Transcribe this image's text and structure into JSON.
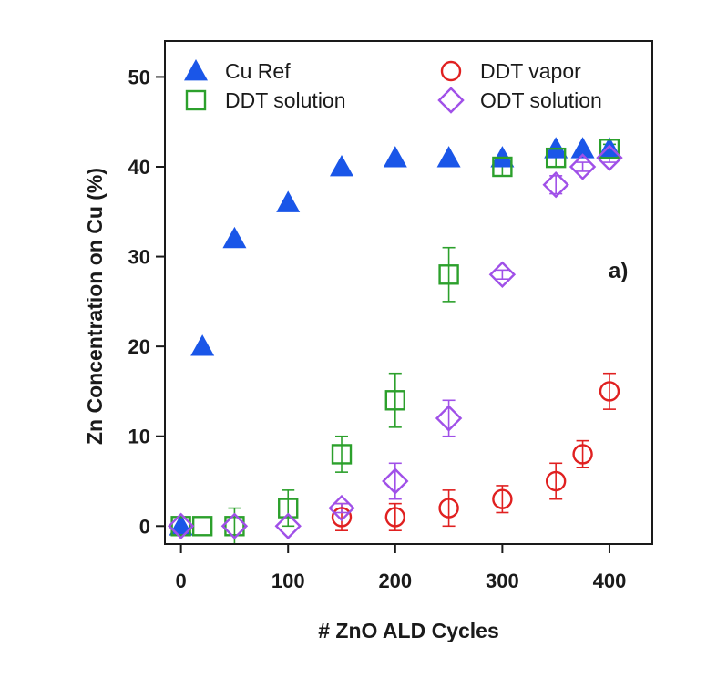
{
  "chart_data": {
    "type": "scatter",
    "title": "",
    "xlabel": "# ZnO ALD Cycles",
    "ylabel": "Zn Concentration on Cu (%)",
    "panel_label": "a)",
    "xlim": [
      -15,
      440
    ],
    "ylim": [
      -2,
      54
    ],
    "x_ticks": [
      0,
      100,
      200,
      300,
      400
    ],
    "y_ticks": [
      0,
      10,
      20,
      30,
      40,
      50
    ],
    "x_tick_labels": [
      "0",
      "100",
      "200",
      "300",
      "400"
    ],
    "y_tick_labels": [
      "0",
      "10",
      "20",
      "30",
      "40",
      "50"
    ],
    "grid": false,
    "legend_position": "top",
    "series": [
      {
        "name": "Cu Ref",
        "marker": "triangle-filled",
        "color": "#1a56e8",
        "points": [
          {
            "x": 0,
            "y": 0
          },
          {
            "x": 20,
            "y": 20
          },
          {
            "x": 50,
            "y": 32
          },
          {
            "x": 100,
            "y": 36
          },
          {
            "x": 150,
            "y": 40
          },
          {
            "x": 200,
            "y": 41
          },
          {
            "x": 250,
            "y": 41
          },
          {
            "x": 300,
            "y": 41
          },
          {
            "x": 350,
            "y": 42
          },
          {
            "x": 375,
            "y": 42
          },
          {
            "x": 400,
            "y": 42
          }
        ]
      },
      {
        "name": "DDT solution",
        "marker": "square-open",
        "color": "#2ca02c",
        "points": [
          {
            "x": 0,
            "y": 0,
            "err": 0
          },
          {
            "x": 20,
            "y": 0,
            "err": 0
          },
          {
            "x": 50,
            "y": 0,
            "err": 2
          },
          {
            "x": 100,
            "y": 2,
            "err": 2
          },
          {
            "x": 150,
            "y": 8,
            "err": 2
          },
          {
            "x": 200,
            "y": 14,
            "err": 3
          },
          {
            "x": 250,
            "y": 28,
            "err": 3
          },
          {
            "x": 300,
            "y": 40,
            "err": 1
          },
          {
            "x": 350,
            "y": 41,
            "err": 1
          },
          {
            "x": 400,
            "y": 42,
            "err": 0.5
          }
        ]
      },
      {
        "name": "DDT vapor",
        "marker": "circle-open",
        "color": "#e02020",
        "points": [
          {
            "x": 150,
            "y": 1,
            "err": 1.5
          },
          {
            "x": 200,
            "y": 1,
            "err": 1.5
          },
          {
            "x": 250,
            "y": 2,
            "err": 2
          },
          {
            "x": 300,
            "y": 3,
            "err": 1.5
          },
          {
            "x": 350,
            "y": 5,
            "err": 2
          },
          {
            "x": 375,
            "y": 8,
            "err": 1.5
          },
          {
            "x": 400,
            "y": 15,
            "err": 2
          }
        ]
      },
      {
        "name": "ODT solution",
        "marker": "diamond-open",
        "color": "#a050e8",
        "points": [
          {
            "x": 0,
            "y": 0,
            "err": 0
          },
          {
            "x": 50,
            "y": 0,
            "err": 0
          },
          {
            "x": 100,
            "y": 0,
            "err": 0
          },
          {
            "x": 150,
            "y": 2,
            "err": 0.5
          },
          {
            "x": 200,
            "y": 5,
            "err": 2
          },
          {
            "x": 250,
            "y": 12,
            "err": 2
          },
          {
            "x": 300,
            "y": 28,
            "err": 0.5
          },
          {
            "x": 350,
            "y": 38,
            "err": 1
          },
          {
            "x": 375,
            "y": 40,
            "err": 0.5
          },
          {
            "x": 400,
            "y": 41,
            "err": 0.5
          }
        ]
      }
    ]
  }
}
